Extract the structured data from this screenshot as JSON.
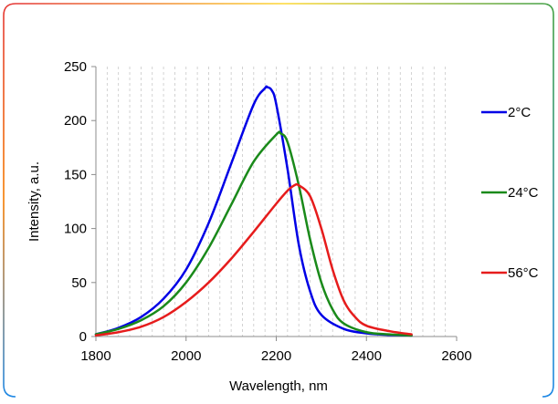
{
  "chart_data": {
    "type": "line",
    "xlabel": "Wavelength, nm",
    "ylabel": "Intensity, a.u.",
    "xlim": [
      1800,
      2600
    ],
    "ylim": [
      0,
      250
    ],
    "x_ticks": [
      "1800",
      "2000",
      "2200",
      "2400",
      "2600"
    ],
    "y_ticks": [
      "0",
      "50",
      "100",
      "150",
      "200",
      "250"
    ],
    "grid": "vertical dashed minor gridlines",
    "legend_position": "right",
    "series": [
      {
        "name": "2°C",
        "color": "#0000e6",
        "x": [
          1800,
          1850,
          1900,
          1950,
          2000,
          2050,
          2100,
          2150,
          2175,
          2180,
          2190,
          2200,
          2225,
          2250,
          2275,
          2300,
          2350,
          2400,
          2450,
          2500
        ],
        "y": [
          2,
          8,
          18,
          35,
          62,
          105,
          160,
          215,
          230,
          231,
          228,
          215,
          155,
          85,
          42,
          20,
          7,
          3,
          1.5,
          1
        ]
      },
      {
        "name": "24°C",
        "color": "#1a8a1a",
        "x": [
          1800,
          1850,
          1900,
          1950,
          2000,
          2050,
          2100,
          2150,
          2200,
          2210,
          2225,
          2250,
          2275,
          2300,
          2325,
          2350,
          2400,
          2450,
          2500
        ],
        "y": [
          2,
          7,
          15,
          28,
          50,
          82,
          122,
          162,
          187,
          188,
          180,
          140,
          90,
          50,
          25,
          12,
          4,
          2,
          1
        ]
      },
      {
        "name": "56°C",
        "color": "#e61c1c",
        "x": [
          1800,
          1850,
          1900,
          1950,
          2000,
          2050,
          2100,
          2150,
          2200,
          2225,
          2240,
          2250,
          2275,
          2300,
          2325,
          2350,
          2375,
          2400,
          2450,
          2500
        ],
        "y": [
          1,
          4,
          9,
          18,
          32,
          50,
          72,
          97,
          123,
          135,
          140,
          140,
          130,
          100,
          62,
          33,
          18,
          10,
          5,
          2
        ]
      }
    ]
  }
}
